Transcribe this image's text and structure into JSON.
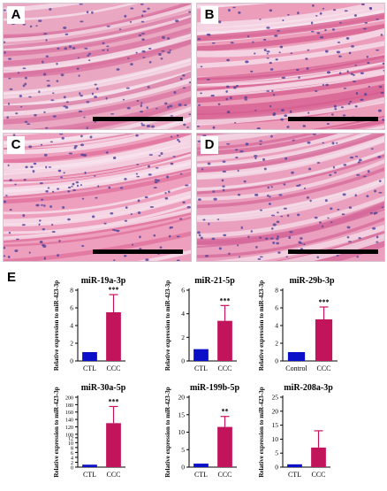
{
  "micrographs": [
    {
      "letter": "A",
      "colors": {
        "bg": "#e9a7c1",
        "fiber": "#d8729f",
        "gap": "#f6e3ec",
        "nucleus": "#5d4a9e"
      }
    },
    {
      "letter": "B",
      "colors": {
        "bg": "#ec9dba",
        "fiber": "#d65c8f",
        "gap": "#f7e4ee",
        "nucleus": "#53449a"
      }
    },
    {
      "letter": "C",
      "colors": {
        "bg": "#ee9fbe",
        "fiber": "#dd6d9b",
        "gap": "#f7e6ef",
        "nucleus": "#56479c"
      }
    },
    {
      "letter": "D",
      "colors": {
        "bg": "#e99fbd",
        "fiber": "#d6679a",
        "gap": "#f4dde9",
        "nucleus": "#5a4a9f"
      }
    }
  ],
  "panel_e_label": "E",
  "chart_data": [
    {
      "type": "bar",
      "title": "miR-19a-3p",
      "ylabel": "Relative expression to miR-423-3p",
      "categories": [
        "CTL",
        "CCC"
      ],
      "values": [
        1.0,
        5.5
      ],
      "errors": [
        0,
        2.0
      ],
      "ylim": [
        0,
        8
      ],
      "yticks": [
        "0",
        "2",
        "4",
        "6",
        "8"
      ],
      "significance": "***"
    },
    {
      "type": "bar",
      "title": "miR-21-5p",
      "ylabel": "Relative expression to miR-423-3p",
      "categories": [
        "CTL",
        "CCC"
      ],
      "values": [
        1.0,
        3.4
      ],
      "errors": [
        0,
        1.3
      ],
      "ylim": [
        0,
        6
      ],
      "yticks": [
        "0",
        "2",
        "4",
        "6"
      ],
      "significance": "***"
    },
    {
      "type": "bar",
      "title": "miR-29b-3p",
      "ylabel": "Relative expression to miR-423-3p",
      "categories": [
        "Control",
        "CCC"
      ],
      "values": [
        1.0,
        4.7
      ],
      "errors": [
        0,
        1.4
      ],
      "ylim": [
        0,
        8
      ],
      "yticks": [
        "0",
        "2",
        "4",
        "6",
        "8"
      ],
      "significance": "***"
    },
    {
      "type": "bar",
      "title": "miR-30a-5p",
      "ylabel": "Relative expression to miR-423-3p",
      "categories": [
        "CTL",
        "CCC"
      ],
      "values": [
        1.0,
        130
      ],
      "errors": [
        0,
        45
      ],
      "ylim": [
        0,
        200
      ],
      "yticks": [
        "0",
        "2",
        "4",
        "6",
        "8",
        "10",
        "12",
        "100",
        "120",
        "140",
        "160",
        "180",
        "200"
      ],
      "significance": "***"
    },
    {
      "type": "bar",
      "title": "miR-199b-5p",
      "ylabel": "Relative expression to miR-423-3p",
      "categories": [
        "CTL",
        "CCC"
      ],
      "values": [
        1.0,
        11.5
      ],
      "errors": [
        0,
        3.0
      ],
      "ylim": [
        0,
        20
      ],
      "yticks": [
        "0",
        "5",
        "10",
        "15",
        "20"
      ],
      "significance": "**"
    },
    {
      "type": "bar",
      "title": "miR-208a-3p",
      "ylabel": "Relative expression to miR-423-3p",
      "categories": [
        "CTL",
        "CCC"
      ],
      "values": [
        1.0,
        7.0
      ],
      "errors": [
        0,
        6.0
      ],
      "ylim": [
        0,
        25
      ],
      "yticks": [
        "0",
        "5",
        "10",
        "15",
        "20",
        "25"
      ],
      "significance": ""
    }
  ],
  "bar_colors": {
    "control": "#0b10c8",
    "ccc": "#c2145a"
  }
}
